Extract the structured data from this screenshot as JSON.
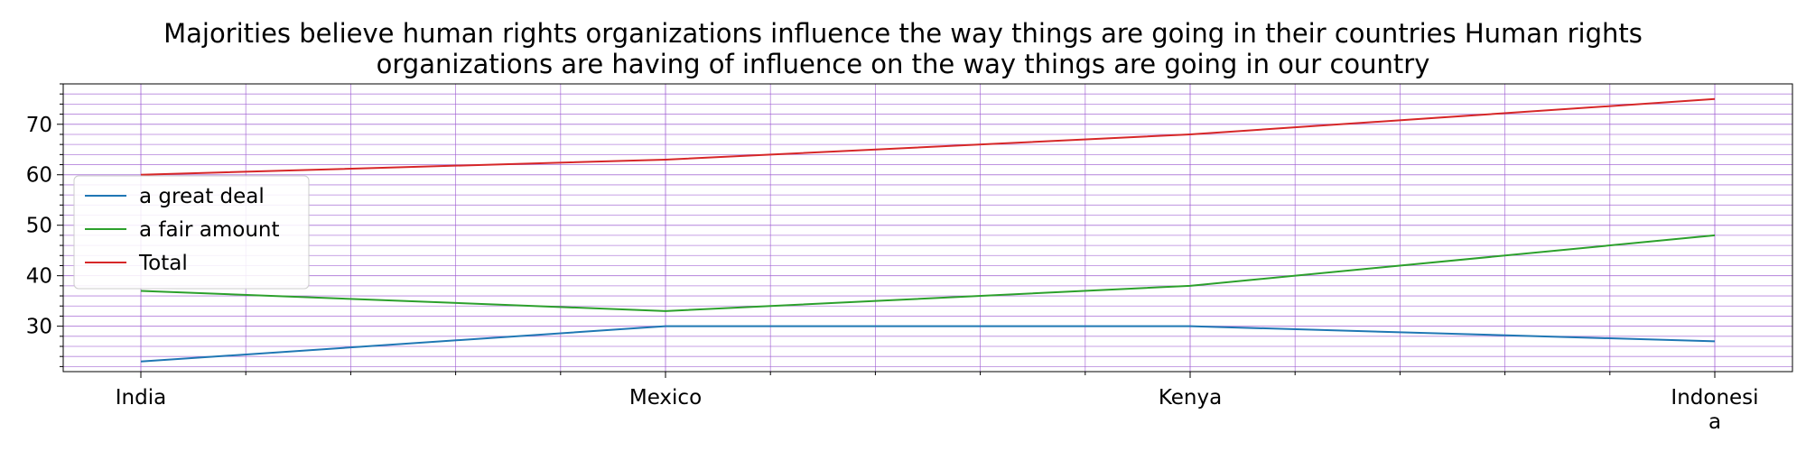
{
  "chart_data": {
    "type": "line",
    "title": "Majorities believe human rights organizations influence the way things are going in their countries Human rights organizations are having of influence on the way things are going in our country",
    "title_lines": [
      "Majorities believe human rights organizations influence the way things are going in their countries Human rights",
      "organizations are having of influence on the way things are going in our country"
    ],
    "xlabel": "",
    "ylabel": "",
    "categories": [
      "India",
      "Mexico",
      "Kenya",
      "Indonesia"
    ],
    "category_label_lines": [
      [
        "India"
      ],
      [
        "Mexico"
      ],
      [
        "Kenya"
      ],
      [
        "Indonesi",
        "a"
      ]
    ],
    "ylim": [
      21,
      78
    ],
    "yticks": [
      30,
      40,
      50,
      60,
      70
    ],
    "series": [
      {
        "name": "a great deal",
        "values": [
          23,
          30,
          30,
          27
        ],
        "color": "#1f77b4"
      },
      {
        "name": "a fair amount",
        "values": [
          37,
          33,
          38,
          48
        ],
        "color": "#2ca02c"
      },
      {
        "name": "Total",
        "values": [
          60,
          63,
          68,
          75
        ],
        "color": "#d62728"
      }
    ],
    "grid": true,
    "grid_color": "#9b59d0",
    "legend_position": "center-left"
  }
}
